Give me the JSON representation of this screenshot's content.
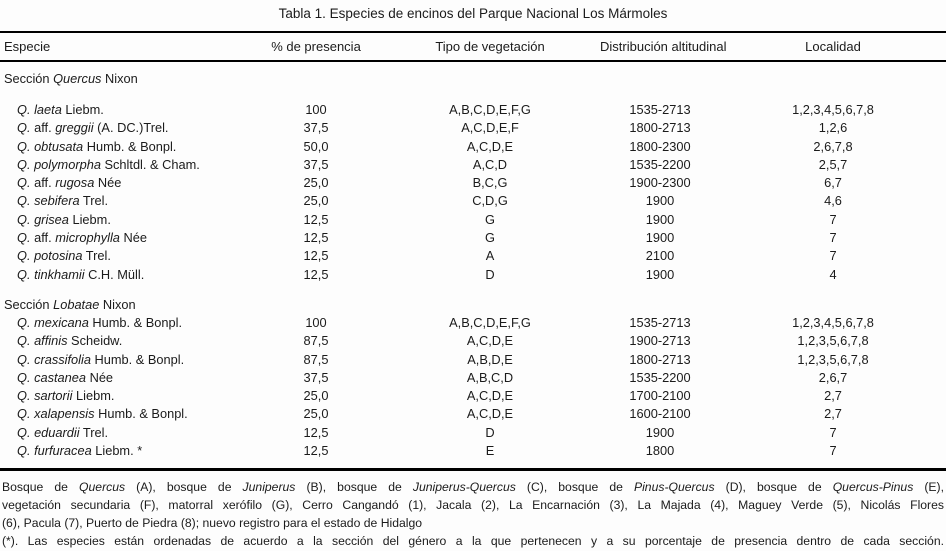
{
  "title": "Tabla 1. Especies de encinos del Parque Nacional Los Mármoles",
  "columns": [
    "Especie",
    "% de presencia",
    "Tipo de vegetación",
    "Distribución altitudinal",
    "Localidad"
  ],
  "sections": [
    {
      "gap_before": false,
      "gap_after_label": true,
      "label": [
        {
          "text": "Sección ",
          "italic": false
        },
        {
          "text": "Quercus",
          "italic": true
        },
        {
          "text": " Nixon",
          "italic": false
        }
      ],
      "rows": [
        {
          "name": [
            {
              "text": "Q. laeta",
              "italic": true
            },
            {
              "text": " Liebm.",
              "italic": false
            }
          ],
          "presencia": "100",
          "vegetacion": "A,B,C,D,E,F,G",
          "altitud": "1535-2713",
          "localidad": "1,2,3,4,5,6,7,8"
        },
        {
          "name": [
            {
              "text": "Q.",
              "italic": true
            },
            {
              "text": " aff. ",
              "italic": false
            },
            {
              "text": "greggii",
              "italic": true
            },
            {
              "text": " (A. DC.)Trel.",
              "italic": false
            }
          ],
          "presencia": "37,5",
          "vegetacion": "A,C,D,E,F",
          "altitud": "1800-2713",
          "localidad": "1,2,6"
        },
        {
          "name": [
            {
              "text": "Q. obtusata",
              "italic": true
            },
            {
              "text": " Humb. & Bonpl.",
              "italic": false
            }
          ],
          "presencia": "50,0",
          "vegetacion": "A,C,D,E",
          "altitud": "1800-2300",
          "localidad": "2,6,7,8"
        },
        {
          "name": [
            {
              "text": "Q. polymorpha",
              "italic": true
            },
            {
              "text": " Schltdl. & Cham.",
              "italic": false
            }
          ],
          "presencia": "37,5",
          "vegetacion": "A,C,D",
          "altitud": "1535-2200",
          "localidad": "2,5,7"
        },
        {
          "name": [
            {
              "text": "Q.",
              "italic": true
            },
            {
              "text": " aff. ",
              "italic": false
            },
            {
              "text": "rugosa",
              "italic": true
            },
            {
              "text": " Née",
              "italic": false
            }
          ],
          "presencia": "25,0",
          "vegetacion": "B,C,G",
          "altitud": "1900-2300",
          "localidad": "6,7"
        },
        {
          "name": [
            {
              "text": "Q. sebifera",
              "italic": true
            },
            {
              "text": " Trel.",
              "italic": false
            }
          ],
          "presencia": "25,0",
          "vegetacion": "C,D,G",
          "altitud": "1900",
          "localidad": "4,6"
        },
        {
          "name": [
            {
              "text": "Q. grisea",
              "italic": true
            },
            {
              "text": " Liebm.",
              "italic": false
            }
          ],
          "presencia": "12,5",
          "vegetacion": "G",
          "altitud": "1900",
          "localidad": "7"
        },
        {
          "name": [
            {
              "text": "Q.",
              "italic": true
            },
            {
              "text": " aff. ",
              "italic": false
            },
            {
              "text": "microphylla",
              "italic": true
            },
            {
              "text": " Née",
              "italic": false
            }
          ],
          "presencia": "12,5",
          "vegetacion": "G",
          "altitud": "1900",
          "localidad": "7"
        },
        {
          "name": [
            {
              "text": "Q. potosina",
              "italic": true
            },
            {
              "text": " Trel.",
              "italic": false
            }
          ],
          "presencia": "12,5",
          "vegetacion": "A",
          "altitud": "2100",
          "localidad": "7"
        },
        {
          "name": [
            {
              "text": "Q. tinkhamii",
              "italic": true
            },
            {
              "text": " C.H. Müll.",
              "italic": false
            }
          ],
          "presencia": "12,5",
          "vegetacion": "D",
          "altitud": "1900",
          "localidad": "4"
        }
      ]
    },
    {
      "gap_before": true,
      "gap_after_label": false,
      "label": [
        {
          "text": "Sección ",
          "italic": false
        },
        {
          "text": "Lobatae",
          "italic": true
        },
        {
          "text": " Nixon",
          "italic": false
        }
      ],
      "rows": [
        {
          "name": [
            {
              "text": "Q. mexicana",
              "italic": true
            },
            {
              "text": " Humb. & Bonpl.",
              "italic": false
            }
          ],
          "presencia": "100",
          "vegetacion": "A,B,C,D,E,F,G",
          "altitud": "1535-2713",
          "localidad": "1,2,3,4,5,6,7,8"
        },
        {
          "name": [
            {
              "text": "Q. affinis",
              "italic": true
            },
            {
              "text": " Scheidw.",
              "italic": false
            }
          ],
          "presencia": "87,5",
          "vegetacion": "A,C,D,E",
          "altitud": "1900-2713",
          "localidad": "1,2,3,5,6,7,8"
        },
        {
          "name": [
            {
              "text": "Q. crassifolia",
              "italic": true
            },
            {
              "text": " Humb. & Bonpl.",
              "italic": false
            }
          ],
          "presencia": "87,5",
          "vegetacion": "A,B,D,E",
          "altitud": "1800-2713",
          "localidad": "1,2,3,5,6,7,8"
        },
        {
          "name": [
            {
              "text": "Q. castanea",
              "italic": true
            },
            {
              "text": " Née",
              "italic": false
            }
          ],
          "presencia": "37,5",
          "vegetacion": "A,B,C,D",
          "altitud": "1535-2200",
          "localidad": "2,6,7"
        },
        {
          "name": [
            {
              "text": "Q. sartorii",
              "italic": true
            },
            {
              "text": " Liebm.",
              "italic": false
            }
          ],
          "presencia": "25,0",
          "vegetacion": "A,C,D,E",
          "altitud": "1700-2100",
          "localidad": "2,7"
        },
        {
          "name": [
            {
              "text": "Q. xalapensis",
              "italic": true
            },
            {
              "text": " Humb. & Bonpl.",
              "italic": false
            }
          ],
          "presencia": "25,0",
          "vegetacion": "A,C,D,E",
          "altitud": "1600-2100",
          "localidad": "2,7"
        },
        {
          "name": [
            {
              "text": "Q. eduardii",
              "italic": true
            },
            {
              "text": " Trel.",
              "italic": false
            }
          ],
          "presencia": "12,5",
          "vegetacion": "D",
          "altitud": "1900",
          "localidad": "7"
        },
        {
          "name": [
            {
              "text": "Q. furfuracea",
              "italic": true
            },
            {
              "text": " Liebm. *",
              "italic": false
            }
          ],
          "presencia": "12,5",
          "vegetacion": "E",
          "altitud": "1800",
          "localidad": "7"
        }
      ]
    }
  ],
  "footnotes": [
    {
      "justify": true,
      "segments": [
        {
          "text": "Bosque de ",
          "italic": false
        },
        {
          "text": "Quercus",
          "italic": true
        },
        {
          "text": " (A), bosque de ",
          "italic": false
        },
        {
          "text": "Juniperus",
          "italic": true
        },
        {
          "text": " (B), bosque de ",
          "italic": false
        },
        {
          "text": "Juniperus-Quercus",
          "italic": true
        },
        {
          "text": " (C), bosque de ",
          "italic": false
        },
        {
          "text": "Pinus-Quercus",
          "italic": true
        },
        {
          "text": " (D), bosque de ",
          "italic": false
        },
        {
          "text": "Quercus-Pinus",
          "italic": true
        },
        {
          "text": " (E),",
          "italic": false
        }
      ]
    },
    {
      "justify": true,
      "segments": [
        {
          "text": "vegetación secundaria (F), matorral xerófilo (G), Cerro Cangandó (1), Jacala (2), La Encarnación (3), La Majada (4), Maguey Verde (5), Nicolás Flores",
          "italic": false
        }
      ]
    },
    {
      "justify": false,
      "segments": [
        {
          "text": "(6), Pacula (7), Puerto de Piedra (8); nuevo registro para el estado de Hidalgo",
          "italic": false
        }
      ]
    },
    {
      "justify": true,
      "segments": [
        {
          "text": "(*). Las especies están ordenadas de acuerdo a la sección del género a la que pertenecen y a su porcentaje de presencia dentro de cada sección.",
          "italic": false
        }
      ]
    }
  ]
}
